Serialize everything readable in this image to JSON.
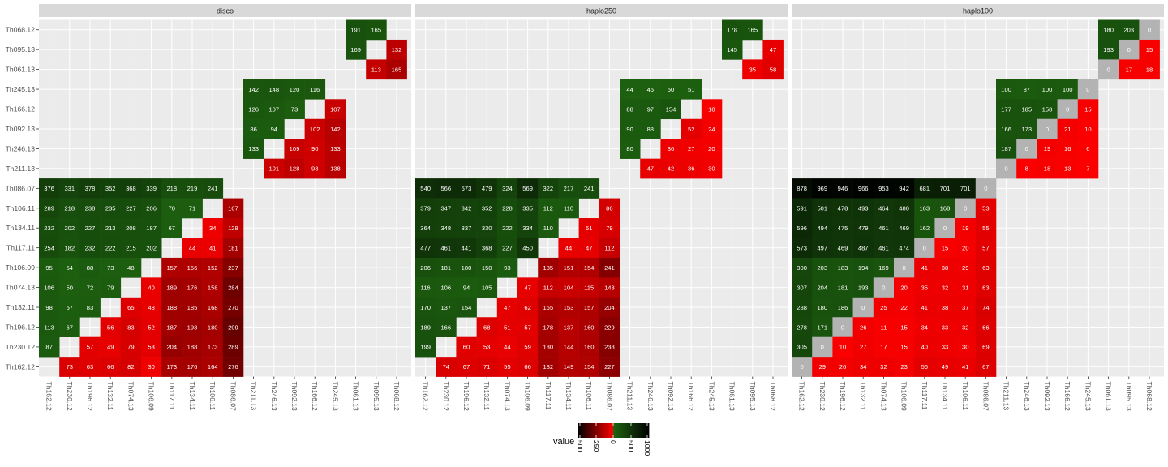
{
  "chart_data": {
    "type": "heatmap",
    "title": "",
    "xlabel": "",
    "ylabel": "",
    "x": [
      "Th162.12",
      "Th230.12",
      "Th196.12",
      "Th132.11",
      "Th074.13",
      "Th106.09",
      "Th117.11",
      "Th134.11",
      "Th106.11",
      "Th086.07",
      "Th211.13",
      "Th246.13",
      "Th092.13",
      "Th166.12",
      "Th245.13",
      "Th061.13",
      "Th095.13",
      "Th068.12"
    ],
    "y": [
      "Th068.12",
      "Th095.13",
      "Th061.13",
      "Th245.13",
      "Th166.12",
      "Th092.13",
      "Th246.13",
      "Th211.13",
      "Th086.07",
      "Th106.11",
      "Th134.11",
      "Th117.11",
      "Th106.09",
      "Th074.13",
      "Th132.11",
      "Th196.12",
      "Th230.12",
      "Th162.12"
    ],
    "color_scale": {
      "lower_triangle": {
        "from": "#ff0000",
        "to": "#000000",
        "label": "0 to 500 (red to black)"
      },
      "upper_triangle": {
        "from": "#1e6410",
        "to": "#000000",
        "label": "0 to 1000 (green to black)"
      },
      "zero_color": "#b3b3b3"
    },
    "legend": {
      "title": "value",
      "ticks": [
        "500",
        "250",
        "0",
        "500",
        "1000"
      ],
      "placement": "bottom"
    },
    "panels": [
      {
        "name": "disco",
        "rows": [
          [
            null,
            null,
            null,
            null,
            null,
            null,
            null,
            null,
            null,
            null,
            null,
            null,
            null,
            null,
            null,
            191,
            165,
            null
          ],
          [
            null,
            null,
            null,
            null,
            null,
            null,
            null,
            null,
            null,
            null,
            null,
            null,
            null,
            null,
            null,
            169,
            null,
            132
          ],
          [
            null,
            null,
            null,
            null,
            null,
            null,
            null,
            null,
            null,
            null,
            null,
            null,
            null,
            null,
            null,
            null,
            113,
            165
          ],
          [
            null,
            null,
            null,
            null,
            null,
            null,
            null,
            null,
            null,
            null,
            142,
            148,
            120,
            116,
            null,
            null,
            null,
            null
          ],
          [
            null,
            null,
            null,
            null,
            null,
            null,
            null,
            null,
            null,
            null,
            126,
            107,
            73,
            null,
            107,
            null,
            null,
            null
          ],
          [
            null,
            null,
            null,
            null,
            null,
            null,
            null,
            null,
            null,
            null,
            86,
            94,
            null,
            102,
            142,
            null,
            null,
            null
          ],
          [
            null,
            null,
            null,
            null,
            null,
            null,
            null,
            null,
            null,
            null,
            133,
            null,
            109,
            90,
            133,
            null,
            null,
            null
          ],
          [
            null,
            null,
            null,
            null,
            null,
            null,
            null,
            null,
            null,
            null,
            null,
            101,
            128,
            93,
            138,
            null,
            null,
            null
          ],
          [
            376,
            331,
            378,
            352,
            368,
            339,
            218,
            219,
            241,
            null,
            null,
            null,
            null,
            null,
            null,
            null,
            null,
            null
          ],
          [
            289,
            218,
            238,
            235,
            227,
            206,
            70,
            71,
            null,
            167,
            null,
            null,
            null,
            null,
            null,
            null,
            null,
            null
          ],
          [
            232,
            202,
            227,
            213,
            208,
            187,
            67,
            null,
            34,
            128,
            null,
            null,
            null,
            null,
            null,
            null,
            null,
            null
          ],
          [
            254,
            182,
            232,
            222,
            215,
            202,
            null,
            44,
            41,
            181,
            null,
            null,
            null,
            null,
            null,
            null,
            null,
            null
          ],
          [
            95,
            54,
            88,
            73,
            48,
            null,
            157,
            156,
            152,
            237,
            null,
            null,
            null,
            null,
            null,
            null,
            null,
            null
          ],
          [
            106,
            50,
            72,
            79,
            null,
            40,
            189,
            176,
            158,
            284,
            null,
            null,
            null,
            null,
            null,
            null,
            null,
            null
          ],
          [
            98,
            57,
            83,
            null,
            65,
            48,
            188,
            185,
            168,
            270,
            null,
            null,
            null,
            null,
            null,
            null,
            null,
            null
          ],
          [
            113,
            67,
            null,
            56,
            83,
            52,
            187,
            193,
            180,
            299,
            null,
            null,
            null,
            null,
            null,
            null,
            null,
            null
          ],
          [
            87,
            null,
            57,
            49,
            79,
            53,
            204,
            188,
            173,
            289,
            null,
            null,
            null,
            null,
            null,
            null,
            null,
            null
          ],
          [
            null,
            73,
            63,
            66,
            82,
            30,
            173,
            176,
            164,
            276,
            null,
            null,
            null,
            null,
            null,
            null,
            null,
            null
          ]
        ]
      },
      {
        "name": "haplo250",
        "rows": [
          [
            null,
            null,
            null,
            null,
            null,
            null,
            null,
            null,
            null,
            null,
            null,
            null,
            null,
            null,
            null,
            178,
            165,
            null
          ],
          [
            null,
            null,
            null,
            null,
            null,
            null,
            null,
            null,
            null,
            null,
            null,
            null,
            null,
            null,
            null,
            145,
            null,
            47
          ],
          [
            null,
            null,
            null,
            null,
            null,
            null,
            null,
            null,
            null,
            null,
            null,
            null,
            null,
            null,
            null,
            null,
            35,
            58
          ],
          [
            null,
            null,
            null,
            null,
            null,
            null,
            null,
            null,
            null,
            null,
            44,
            45,
            50,
            51,
            null,
            null,
            null,
            null
          ],
          [
            null,
            null,
            null,
            null,
            null,
            null,
            null,
            null,
            null,
            null,
            88,
            97,
            154,
            null,
            18,
            null,
            null,
            null
          ],
          [
            null,
            null,
            null,
            null,
            null,
            null,
            null,
            null,
            null,
            null,
            90,
            88,
            null,
            52,
            24,
            null,
            null,
            null
          ],
          [
            null,
            null,
            null,
            null,
            null,
            null,
            null,
            null,
            null,
            null,
            80,
            null,
            36,
            27,
            20,
            null,
            null,
            null
          ],
          [
            null,
            null,
            null,
            null,
            null,
            null,
            null,
            null,
            null,
            null,
            null,
            47,
            42,
            36,
            30,
            null,
            null,
            null
          ],
          [
            540,
            566,
            573,
            479,
            324,
            569,
            322,
            217,
            241,
            null,
            null,
            null,
            null,
            null,
            null,
            null,
            null,
            null
          ],
          [
            379,
            347,
            342,
            352,
            228,
            335,
            112,
            110,
            null,
            86,
            null,
            null,
            null,
            null,
            null,
            null,
            null,
            null
          ],
          [
            364,
            348,
            337,
            330,
            222,
            334,
            110,
            null,
            51,
            79,
            null,
            null,
            null,
            null,
            null,
            null,
            null,
            null
          ],
          [
            477,
            461,
            441,
            368,
            227,
            450,
            null,
            44,
            47,
            112,
            null,
            null,
            null,
            null,
            null,
            null,
            null,
            null
          ],
          [
            206,
            181,
            180,
            150,
            93,
            null,
            185,
            151,
            154,
            241,
            null,
            null,
            null,
            null,
            null,
            null,
            null,
            null
          ],
          [
            116,
            106,
            94,
            105,
            null,
            47,
            112,
            104,
            115,
            143,
            null,
            null,
            null,
            null,
            null,
            null,
            null,
            null
          ],
          [
            170,
            137,
            154,
            null,
            47,
            62,
            165,
            153,
            157,
            204,
            null,
            null,
            null,
            null,
            null,
            null,
            null,
            null
          ],
          [
            189,
            166,
            null,
            68,
            51,
            57,
            178,
            137,
            160,
            229,
            null,
            null,
            null,
            null,
            null,
            null,
            null,
            null
          ],
          [
            199,
            null,
            60,
            53,
            44,
            59,
            180,
            144,
            160,
            238,
            null,
            null,
            null,
            null,
            null,
            null,
            null,
            null
          ],
          [
            null,
            74,
            67,
            71,
            55,
            66,
            182,
            149,
            154,
            227,
            null,
            null,
            null,
            null,
            null,
            null,
            null,
            null
          ]
        ]
      },
      {
        "name": "haplo100",
        "rows": [
          [
            null,
            null,
            null,
            null,
            null,
            null,
            null,
            null,
            null,
            null,
            null,
            null,
            null,
            null,
            null,
            180,
            203,
            0
          ],
          [
            null,
            null,
            null,
            null,
            null,
            null,
            null,
            null,
            null,
            null,
            null,
            null,
            null,
            null,
            null,
            193,
            0,
            15
          ],
          [
            null,
            null,
            null,
            null,
            null,
            null,
            null,
            null,
            null,
            null,
            null,
            null,
            null,
            null,
            null,
            0,
            17,
            18
          ],
          [
            null,
            null,
            null,
            null,
            null,
            null,
            null,
            null,
            null,
            null,
            100,
            87,
            100,
            100,
            0,
            null,
            null,
            null
          ],
          [
            null,
            null,
            null,
            null,
            null,
            null,
            null,
            null,
            null,
            null,
            177,
            185,
            158,
            0,
            15,
            null,
            null,
            null
          ],
          [
            null,
            null,
            null,
            null,
            null,
            null,
            null,
            null,
            null,
            null,
            166,
            173,
            0,
            21,
            10,
            null,
            null,
            null
          ],
          [
            null,
            null,
            null,
            null,
            null,
            null,
            null,
            null,
            null,
            null,
            187,
            0,
            19,
            16,
            6,
            null,
            null,
            null
          ],
          [
            null,
            null,
            null,
            null,
            null,
            null,
            null,
            null,
            null,
            null,
            0,
            8,
            18,
            13,
            7,
            null,
            null,
            null
          ],
          [
            878,
            969,
            946,
            966,
            953,
            942,
            681,
            701,
            701,
            0,
            null,
            null,
            null,
            null,
            null,
            null,
            null,
            null
          ],
          [
            591,
            501,
            478,
            493,
            464,
            480,
            163,
            168,
            0,
            53,
            null,
            null,
            null,
            null,
            null,
            null,
            null,
            null
          ],
          [
            596,
            494,
            475,
            479,
            461,
            469,
            162,
            0,
            19,
            55,
            null,
            null,
            null,
            null,
            null,
            null,
            null,
            null
          ],
          [
            573,
            497,
            469,
            487,
            461,
            474,
            0,
            15,
            20,
            57,
            null,
            null,
            null,
            null,
            null,
            null,
            null,
            null
          ],
          [
            300,
            203,
            183,
            194,
            169,
            0,
            41,
            38,
            29,
            63,
            null,
            null,
            null,
            null,
            null,
            null,
            null,
            null
          ],
          [
            307,
            204,
            181,
            193,
            0,
            20,
            35,
            32,
            31,
            63,
            null,
            null,
            null,
            null,
            null,
            null,
            null,
            null
          ],
          [
            288,
            180,
            186,
            0,
            25,
            22,
            41,
            38,
            37,
            74,
            null,
            null,
            null,
            null,
            null,
            null,
            null,
            null
          ],
          [
            278,
            171,
            0,
            26,
            11,
            15,
            34,
            33,
            32,
            66,
            null,
            null,
            null,
            null,
            null,
            null,
            null,
            null
          ],
          [
            305,
            0,
            10,
            27,
            17,
            15,
            40,
            33,
            30,
            69,
            null,
            null,
            null,
            null,
            null,
            null,
            null,
            null
          ],
          [
            0,
            29,
            26,
            34,
            32,
            23,
            56,
            49,
            41,
            67,
            null,
            null,
            null,
            null,
            null,
            null,
            null,
            null
          ]
        ]
      }
    ]
  }
}
